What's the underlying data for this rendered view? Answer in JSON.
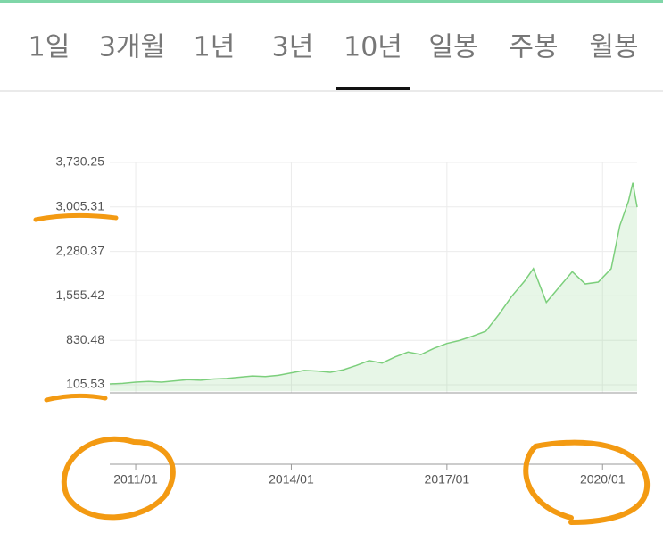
{
  "tabs": {
    "items": [
      "1일",
      "3개월",
      "1년",
      "3년",
      "10년",
      "일봉",
      "주봉",
      "월봉"
    ],
    "active": 4
  },
  "chart_data": {
    "type": "area",
    "x": [
      "2010/07",
      "2010/10",
      "2011/01",
      "2011/04",
      "2011/07",
      "2011/10",
      "2012/01",
      "2012/04",
      "2012/07",
      "2012/10",
      "2013/01",
      "2013/04",
      "2013/07",
      "2013/10",
      "2014/01",
      "2014/04",
      "2014/07",
      "2014/10",
      "2015/01",
      "2015/04",
      "2015/07",
      "2015/10",
      "2016/01",
      "2016/04",
      "2016/07",
      "2016/10",
      "2017/01",
      "2017/04",
      "2017/07",
      "2017/10",
      "2018/01",
      "2018/04",
      "2018/07",
      "2018/09",
      "2018/12",
      "2019/03",
      "2019/06",
      "2019/09",
      "2019/12",
      "2020/03",
      "2020/05",
      "2020/07",
      "2020/08",
      "2020/09"
    ],
    "values": [
      120,
      130,
      150,
      160,
      150,
      170,
      190,
      180,
      200,
      210,
      230,
      250,
      240,
      260,
      300,
      340,
      330,
      310,
      350,
      420,
      500,
      460,
      560,
      640,
      600,
      700,
      780,
      830,
      900,
      980,
      1250,
      1550,
      1800,
      2000,
      1450,
      1700,
      1950,
      1750,
      1780,
      2000,
      2700,
      3100,
      3400,
      3000
    ],
    "color": "#7ccf7c",
    "xlim": [
      "2010/07",
      "2020/09"
    ],
    "xticks": [
      "2011/01",
      "2014/01",
      "2017/01",
      "2020/01"
    ],
    "ylim": [
      -25,
      3730.25
    ],
    "yticks": [
      105.53,
      830.48,
      {
        "value": 1555.42,
        "label": "1,555.42"
      },
      {
        "value": 2280.37,
        "label": "2,280.37"
      },
      {
        "value": 3005.31,
        "label": "3,005.31"
      },
      {
        "value": 3730.25,
        "label": "3,730.25"
      }
    ],
    "grid": true
  }
}
